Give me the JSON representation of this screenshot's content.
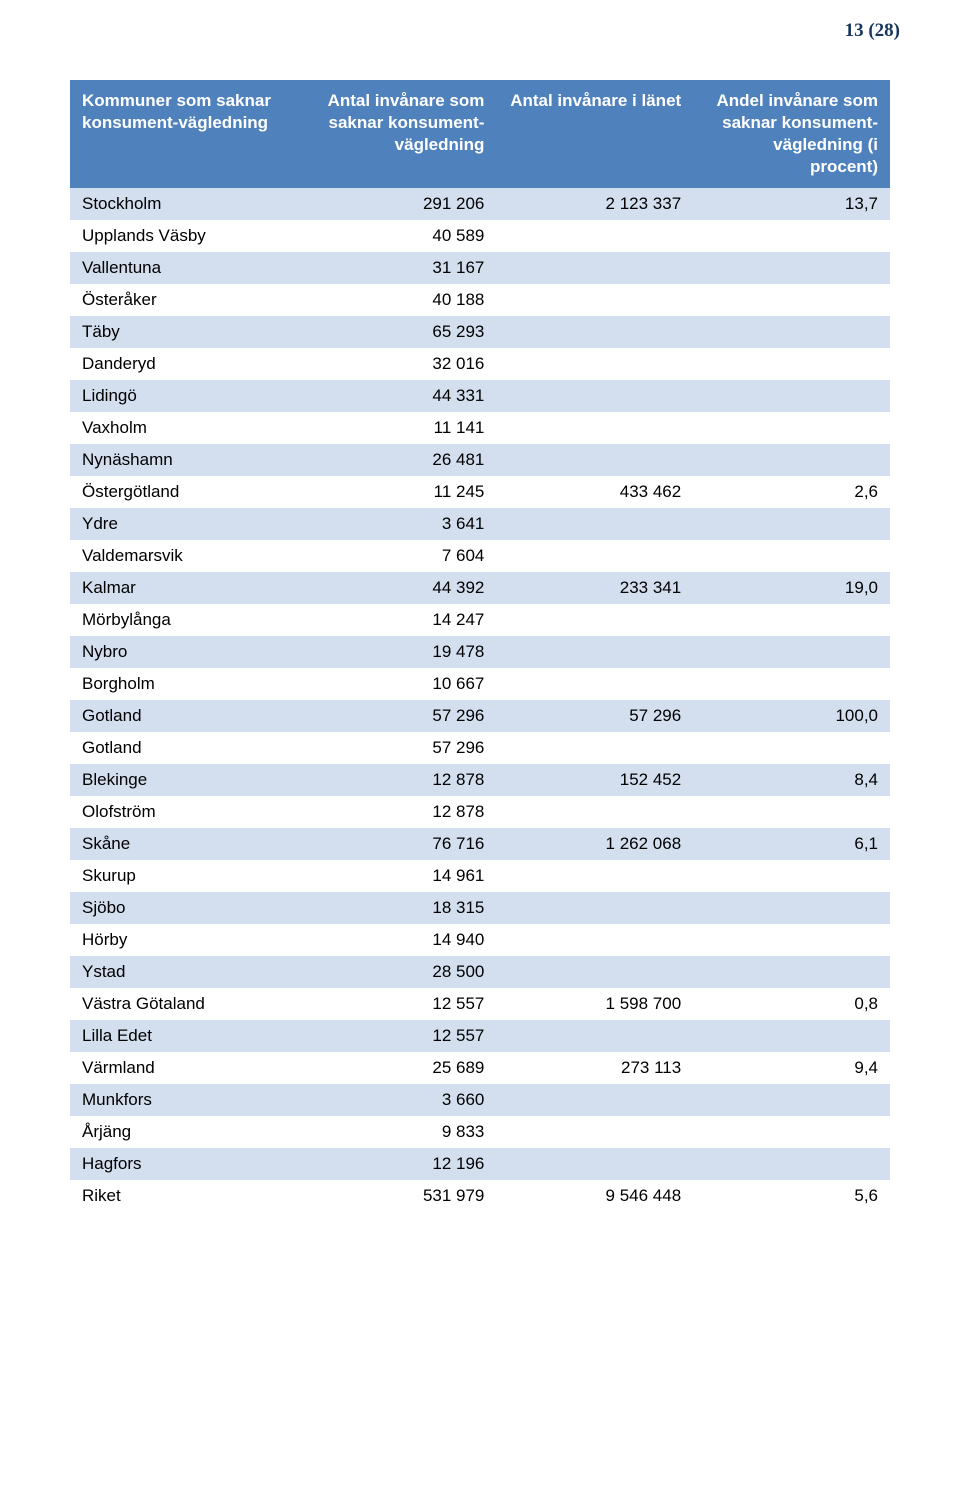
{
  "page_number": "13 (28)",
  "table": {
    "columns": [
      "Kommuner som saknar konsument-vägledning",
      "Antal invånare som saknar konsument-vägledning",
      "Antal invånare i länet",
      "Andel invånare som saknar konsument-vägledning (i procent)"
    ],
    "rows": [
      [
        "Stockholm",
        "291 206",
        "2 123 337",
        "13,7"
      ],
      [
        "Upplands Väsby",
        "40 589",
        "",
        ""
      ],
      [
        "Vallentuna",
        "31 167",
        "",
        ""
      ],
      [
        "Österåker",
        "40 188",
        "",
        ""
      ],
      [
        "Täby",
        "65 293",
        "",
        ""
      ],
      [
        "Danderyd",
        "32 016",
        "",
        ""
      ],
      [
        "Lidingö",
        "44 331",
        "",
        ""
      ],
      [
        "Vaxholm",
        "11 141",
        "",
        ""
      ],
      [
        "Nynäshamn",
        "26 481",
        "",
        ""
      ],
      [
        "Östergötland",
        "11 245",
        "433 462",
        "2,6"
      ],
      [
        "Ydre",
        "3 641",
        "",
        ""
      ],
      [
        "Valdemarsvik",
        "7 604",
        "",
        ""
      ],
      [
        "Kalmar",
        "44 392",
        "233 341",
        "19,0"
      ],
      [
        "Mörbylånga",
        "14 247",
        "",
        ""
      ],
      [
        "Nybro",
        "19 478",
        "",
        ""
      ],
      [
        "Borgholm",
        "10 667",
        "",
        ""
      ],
      [
        "Gotland",
        "57 296",
        "57 296",
        "100,0"
      ],
      [
        "Gotland",
        "57 296",
        "",
        ""
      ],
      [
        "Blekinge",
        "12 878",
        "152 452",
        "8,4"
      ],
      [
        "Olofström",
        "12 878",
        "",
        ""
      ],
      [
        "Skåne",
        "76 716",
        "1 262 068",
        "6,1"
      ],
      [
        "Skurup",
        "14 961",
        "",
        ""
      ],
      [
        "Sjöbo",
        "18 315",
        "",
        ""
      ],
      [
        "Hörby",
        "14 940",
        "",
        ""
      ],
      [
        "Ystad",
        "28 500",
        "",
        ""
      ],
      [
        "Västra Götaland",
        "12 557",
        "1 598 700",
        "0,8"
      ],
      [
        "Lilla Edet",
        "12 557",
        "",
        ""
      ],
      [
        "Värmland",
        "25 689",
        "273 113",
        "9,4"
      ],
      [
        "Munkfors",
        "3 660",
        "",
        ""
      ],
      [
        "Årjäng",
        "9 833",
        "",
        ""
      ],
      [
        "Hagfors",
        "12 196",
        "",
        ""
      ],
      [
        "Riket",
        "531 979",
        "9 546 448",
        "5,6"
      ]
    ],
    "header_bg": "#4f81bd",
    "header_color": "#ffffff",
    "row_even_bg": "#d3dfee",
    "row_odd_bg": "#ffffff",
    "font_size": 17
  }
}
